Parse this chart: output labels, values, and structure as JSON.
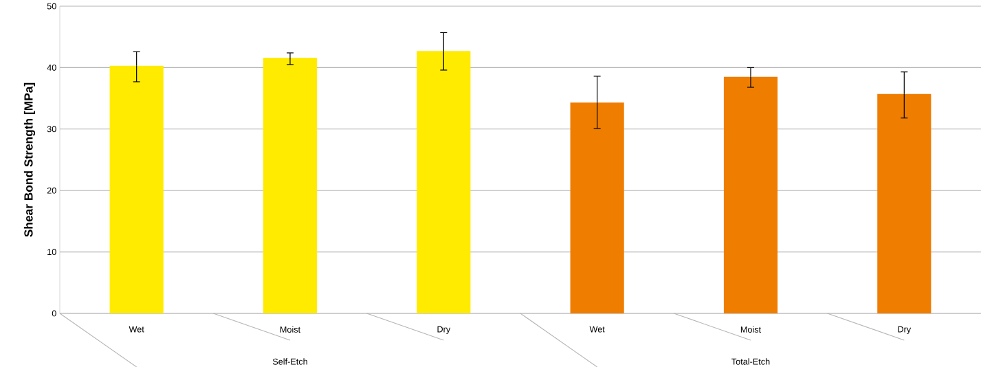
{
  "chart_data": {
    "type": "bar",
    "ylabel": "Shear Bond Strength [MPa]",
    "categories": [
      "Wet",
      "Moist",
      "Dry",
      "Wet",
      "Moist",
      "Dry"
    ],
    "values": [
      40.3,
      41.6,
      42.7,
      34.3,
      38.5,
      35.7
    ],
    "errors": [
      [
        37.7,
        42.6
      ],
      [
        40.5,
        42.4
      ],
      [
        39.6,
        45.7
      ],
      [
        30.1,
        38.6
      ],
      [
        36.8,
        40.0
      ],
      [
        31.8,
        39.3
      ]
    ],
    "colors": [
      "#ffeb00",
      "#ffeb00",
      "#ffeb00",
      "#ee7d00",
      "#ee7d00",
      "#ee7d00"
    ],
    "annotations": [
      "Self-Etch",
      "Total-Etch"
    ],
    "ylim": [
      0,
      50
    ],
    "yticks": [
      0,
      10,
      20,
      30,
      40,
      50
    ],
    "grid": "y"
  }
}
